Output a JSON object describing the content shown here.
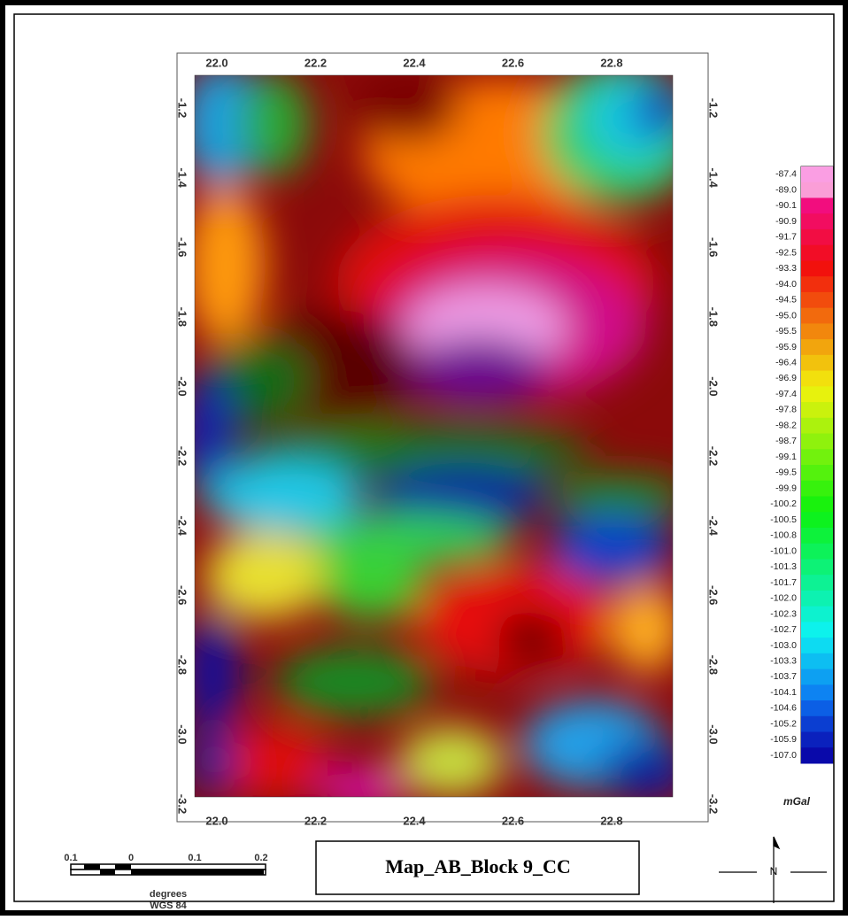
{
  "map": {
    "top_axis": {
      "ticks": [
        "22.0",
        "22.2",
        "22.4",
        "22.6",
        "22.8"
      ]
    },
    "bottom_axis": {
      "ticks": [
        "22.0",
        "22.2",
        "22.4",
        "22.6",
        "22.8"
      ]
    },
    "left_axis": {
      "ticks": [
        "-1.2",
        "-1.4",
        "-1.6",
        "-1.8",
        "-2.0",
        "-2.2",
        "-2.4",
        "-2.6",
        "-2.8",
        "-3.0",
        "-3.2"
      ]
    },
    "right_axis": {
      "ticks": [
        "-1.2",
        "-1.4",
        "-1.6",
        "-1.8",
        "-2.0",
        "-2.2",
        "-2.4",
        "-2.6",
        "-2.8",
        "-3.0",
        "-3.2"
      ]
    },
    "legend": {
      "labels": [
        "-87.4",
        "-89.0",
        "-90.1",
        "-90.9",
        "-91.7",
        "-92.5",
        "-93.3",
        "-94.0",
        "-94.5",
        "-95.0",
        "-95.5",
        "-95.9",
        "-96.4",
        "-96.9",
        "-97.4",
        "-97.8",
        "-98.2",
        "-98.7",
        "-99.1",
        "-99.5",
        "-99.9",
        "-100.2",
        "-100.5",
        "-100.8",
        "-101.0",
        "-101.3",
        "-101.7",
        "-102.0",
        "-102.3",
        "-102.7",
        "-103.0",
        "-103.3",
        "-103.7",
        "-104.1",
        "-104.6",
        "-105.2",
        "-105.9",
        "-107.0"
      ],
      "unit": "mGal"
    },
    "scale_bar": {
      "labels": [
        "0.1",
        "0",
        "0.1",
        "0.2"
      ],
      "unit": "degrees",
      "datum": "WGS 84"
    },
    "title": "Map_AB_Block 9_CC",
    "north": "N"
  }
}
